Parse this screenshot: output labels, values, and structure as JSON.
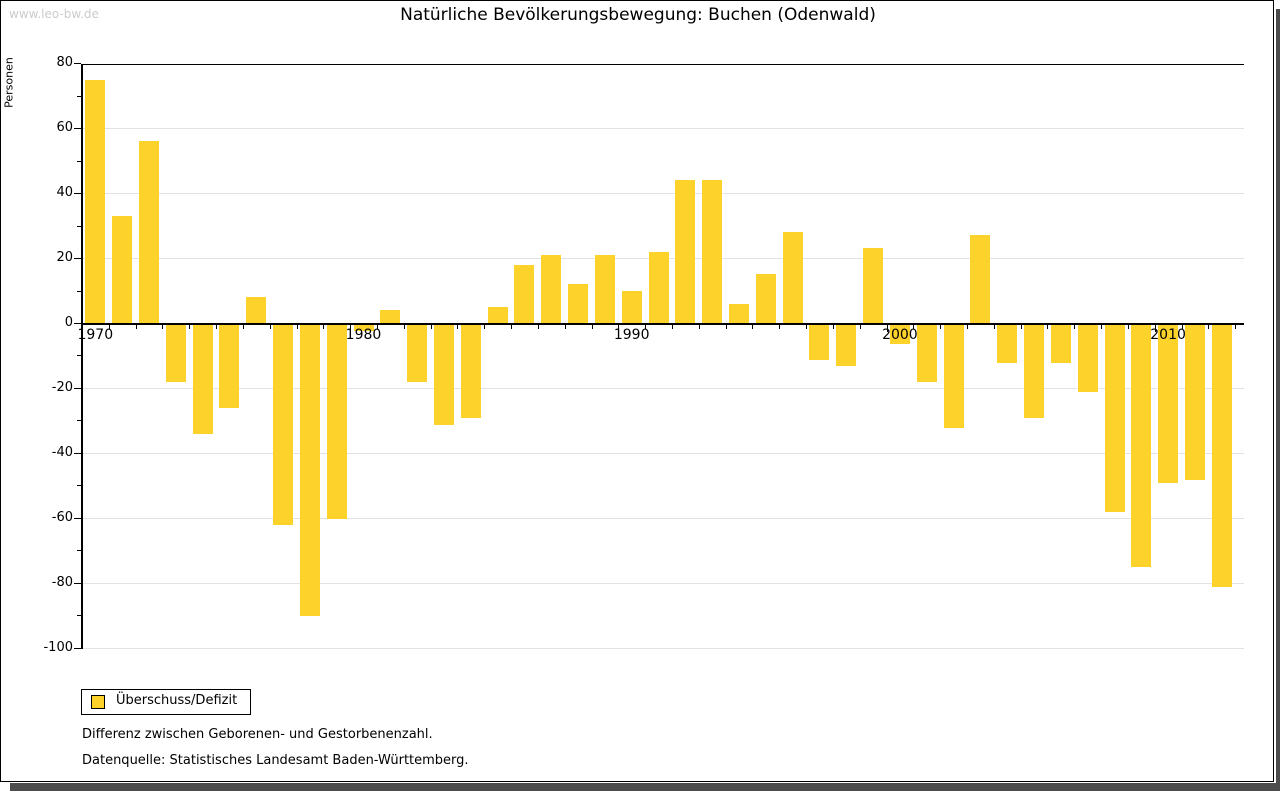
{
  "watermark": "www.leo-bw.de",
  "title": "Natürliche Bevölkerungsbewegung: Buchen (Odenwald)",
  "y_axis_label": "Personen",
  "legend": {
    "label": "Überschuss/Defizit"
  },
  "footnotes": [
    "Differenz zwischen Geborenen- und Gestorbenenzahl.",
    "Datenquelle: Statistisches Landesamt Baden-Württemberg."
  ],
  "colors": {
    "bar": "#FCD22B",
    "grid": "#E2E2E2",
    "axis": "#000000",
    "watermark": "#CCCCCC",
    "shadow": "#4D4D4D",
    "background": "#FFFFFF"
  },
  "chart_data": {
    "type": "bar",
    "title": "Natürliche Bevölkerungsbewegung: Buchen (Odenwald)",
    "xlabel": "",
    "ylabel": "Personen",
    "ylim": [
      -100,
      80
    ],
    "grid": true,
    "legend_position": "bottom-left",
    "series_name": "Überschuss/Defizit",
    "y_ticks": [
      80,
      60,
      40,
      20,
      0,
      -20,
      -40,
      -60,
      -80,
      -100
    ],
    "x_tick_labels": [
      "1970",
      "1980",
      "1990",
      "2000",
      "2010"
    ],
    "categories": [
      1970,
      1971,
      1972,
      1973,
      1974,
      1975,
      1976,
      1977,
      1978,
      1979,
      1980,
      1981,
      1982,
      1983,
      1984,
      1985,
      1986,
      1987,
      1988,
      1989,
      1990,
      1991,
      1992,
      1993,
      1994,
      1995,
      1996,
      1997,
      1998,
      1999,
      2000,
      2001,
      2002,
      2003,
      2004,
      2005,
      2006,
      2007,
      2008,
      2009,
      2010,
      2011,
      2012
    ],
    "values": [
      75,
      33,
      56,
      -18,
      -34,
      -26,
      8,
      -62,
      -90,
      -60,
      -2,
      4,
      -18,
      -31,
      -29,
      5,
      18,
      21,
      12,
      21,
      10,
      22,
      44,
      44,
      6,
      15,
      28,
      -11,
      -13,
      23,
      -6,
      -18,
      -32,
      27,
      -12,
      -29,
      -12,
      -21,
      -58,
      -75,
      -49,
      -48,
      -81
    ]
  }
}
